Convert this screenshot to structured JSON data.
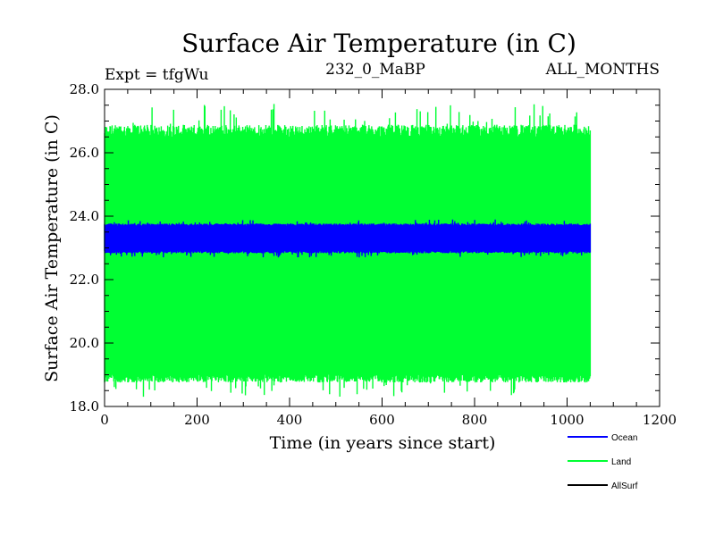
{
  "chart_data": {
    "type": "line",
    "title": "Surface Air Temperature (in C)",
    "subtitle_left": "Expt = tfgWu",
    "subtitle_center": "232_0_MaBP",
    "subtitle_right": "ALL_MONTHS",
    "xlabel": "Time (in years since start)",
    "ylabel": "Surface Air Temperature (in C)",
    "xlim": [
      0,
      1200
    ],
    "ylim": [
      18.0,
      28.0
    ],
    "x_ticks": [
      0,
      200,
      400,
      600,
      800,
      1000,
      1200
    ],
    "x_tick_labels": [
      "0",
      "200",
      "400",
      "600",
      "800",
      "1000",
      "1200"
    ],
    "y_ticks": [
      18.0,
      20.0,
      22.0,
      24.0,
      26.0,
      28.0
    ],
    "y_tick_labels": [
      "18.0",
      "20.0",
      "22.0",
      "24.0",
      "26.0",
      "28.0"
    ],
    "x_range_data": [
      0,
      1050
    ],
    "series": [
      {
        "name": "Land",
        "color": "#00ff33",
        "mean": 22.8,
        "min": 18.3,
        "max": 27.6,
        "band_low": 19.0,
        "band_high": 26.5
      },
      {
        "name": "Ocean",
        "color": "#0000ff",
        "mean": 23.3,
        "min": 22.7,
        "max": 23.9,
        "band_low": 22.9,
        "band_high": 23.7
      },
      {
        "name": "AllSurf",
        "color": "#000000",
        "mean": 23.2,
        "min": 23.2,
        "max": 23.2,
        "band_low": 23.2,
        "band_high": 23.2
      }
    ],
    "legend": [
      {
        "name": "Ocean",
        "color": "#0000ff"
      },
      {
        "name": "Land",
        "color": "#00ff33"
      },
      {
        "name": "AllSurf",
        "color": "#000000"
      }
    ]
  }
}
